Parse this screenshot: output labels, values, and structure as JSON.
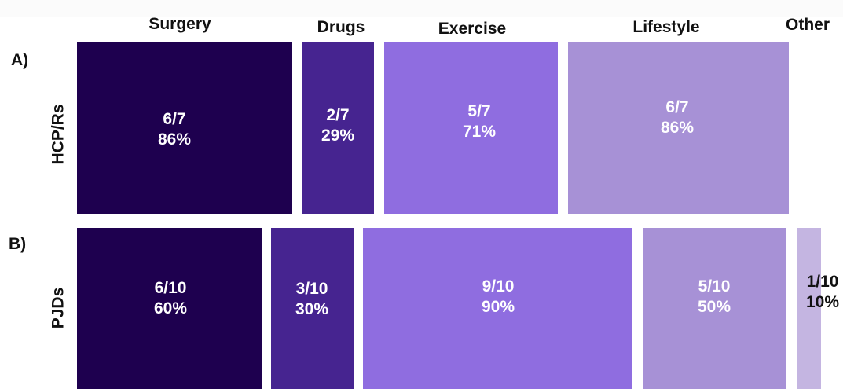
{
  "chart_data": {
    "type": "mosaic",
    "categories": [
      "Surgery",
      "Drugs",
      "Exercise",
      "Lifestyle",
      "Other"
    ],
    "colors": {
      "Surgery": "#1e004f",
      "Drugs": "#462490",
      "Exercise": "#8f6de0",
      "Lifestyle": "#a791d6",
      "Other": "#c4b5e1"
    },
    "label_color": "#ffffff",
    "other_label_color": "#111111",
    "rows": [
      {
        "panel": "A)",
        "group": "HCP/Rs",
        "cells": [
          {
            "category": "Surgery",
            "fraction": "6/7",
            "percent": "86%",
            "value": 86
          },
          {
            "category": "Drugs",
            "fraction": "2/7",
            "percent": "29%",
            "value": 29
          },
          {
            "category": "Exercise",
            "fraction": "5/7",
            "percent": "71%",
            "value": 71
          },
          {
            "category": "Lifestyle",
            "fraction": "6/7",
            "percent": "86%",
            "value": 86
          }
        ]
      },
      {
        "panel": "B)",
        "group": "PJDs",
        "cells": [
          {
            "category": "Surgery",
            "fraction": "6/10",
            "percent": "60%",
            "value": 60
          },
          {
            "category": "Drugs",
            "fraction": "3/10",
            "percent": "30%",
            "value": 30
          },
          {
            "category": "Exercise",
            "fraction": "9/10",
            "percent": "90%",
            "value": 90
          },
          {
            "category": "Lifestyle",
            "fraction": "5/10",
            "percent": "50%",
            "value": 50
          },
          {
            "category": "Other",
            "fraction": "1/10",
            "percent": "10%",
            "value": 10
          }
        ]
      }
    ]
  }
}
